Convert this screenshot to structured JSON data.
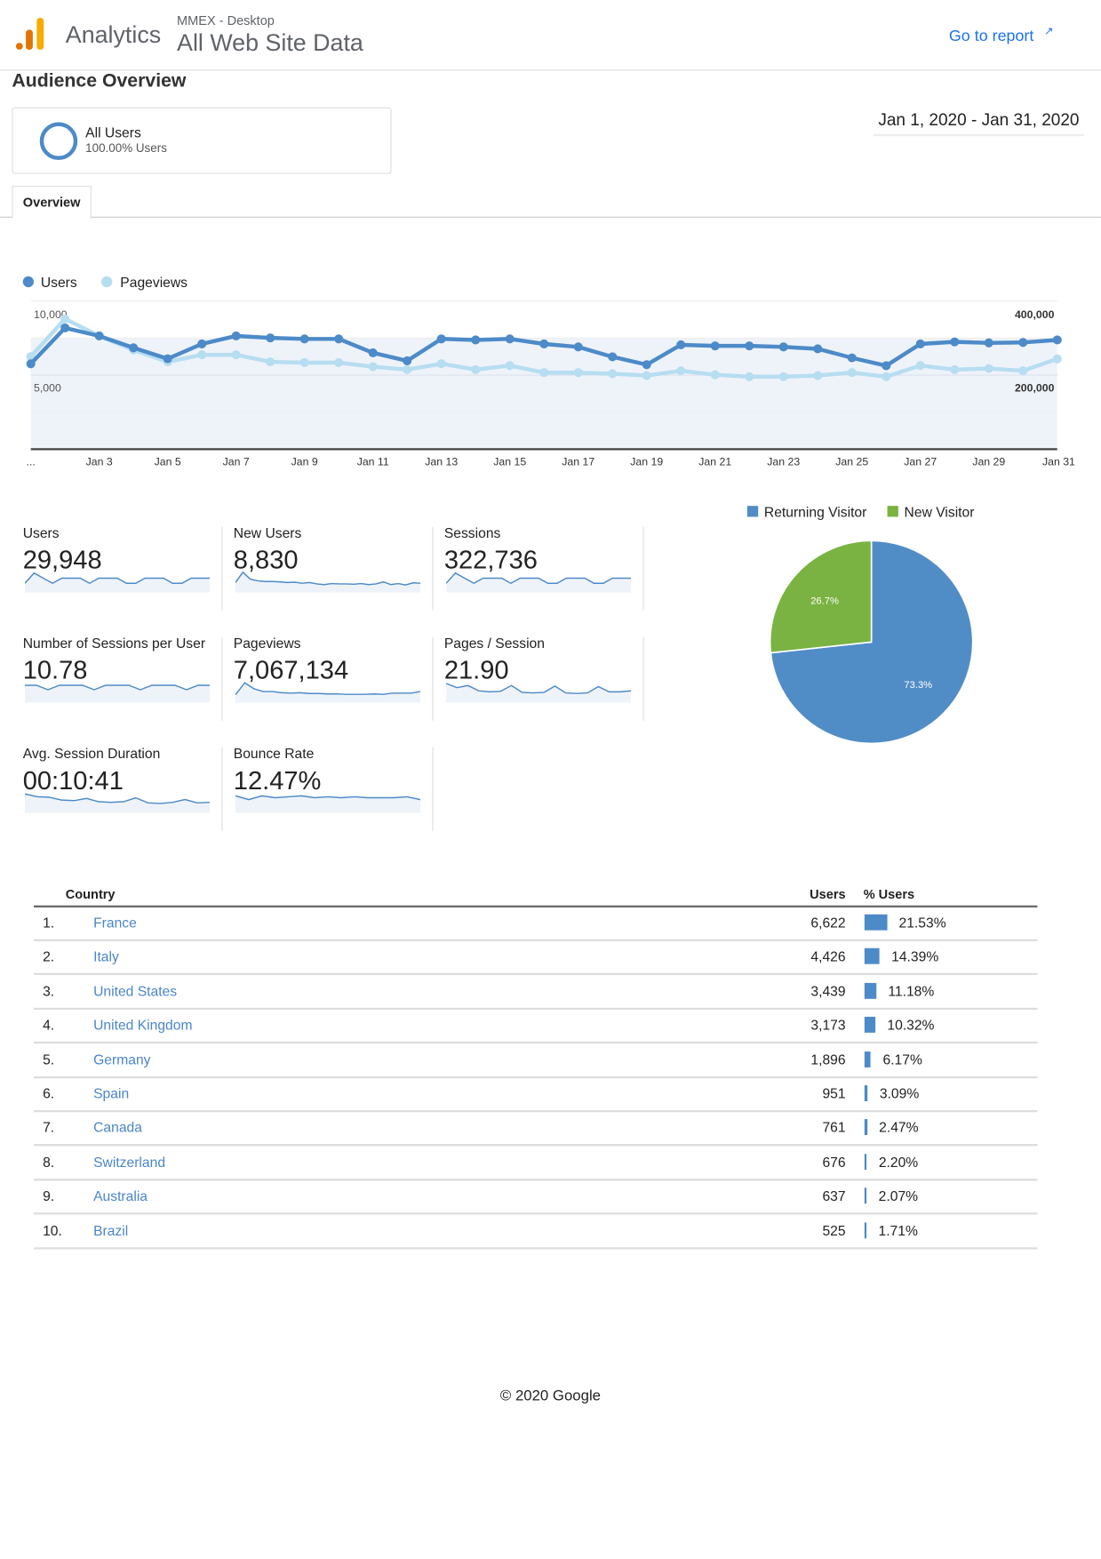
{
  "header": {
    "product": "Analytics",
    "account": "MMEX - Desktop",
    "view": "All Web Site Data",
    "go_to_report": "Go to report"
  },
  "page_title": "Audience Overview",
  "segment": {
    "name": "All Users",
    "detail": "100.00% Users"
  },
  "date_range": "Jan 1, 2020 - Jan 31, 2020",
  "tabs": [
    {
      "label": "Overview"
    }
  ],
  "colors": {
    "users": "#4d8ac8",
    "pageviews": "#b7ddf1",
    "returning": "#508dc6",
    "new": "#7ab342",
    "link": "#1a73e8"
  },
  "chart_data": [
    {
      "type": "line",
      "legend": [
        "Users",
        "Pageviews"
      ],
      "x": [
        "Jan 1",
        "Jan 2",
        "Jan 3",
        "Jan 4",
        "Jan 5",
        "Jan 6",
        "Jan 7",
        "Jan 8",
        "Jan 9",
        "Jan 10",
        "Jan 11",
        "Jan 12",
        "Jan 13",
        "Jan 14",
        "Jan 15",
        "Jan 16",
        "Jan 17",
        "Jan 18",
        "Jan 19",
        "Jan 20",
        "Jan 21",
        "Jan 22",
        "Jan 23",
        "Jan 24",
        "Jan 25",
        "Jan 26",
        "Jan 27",
        "Jan 28",
        "Jan 29",
        "Jan 30",
        "Jan 31"
      ],
      "xtick_labels": [
        "...",
        "Jan 3",
        "Jan 5",
        "Jan 7",
        "Jan 9",
        "Jan 11",
        "Jan 13",
        "Jan 15",
        "Jan 17",
        "Jan 19",
        "Jan 21",
        "Jan 23",
        "Jan 25",
        "Jan 27",
        "Jan 29",
        "Jan 31"
      ],
      "left_axis": {
        "ticks": [
          "10,000",
          "5,000"
        ],
        "range": [
          0,
          10000
        ]
      },
      "right_axis": {
        "ticks": [
          "400,000",
          "200,000"
        ],
        "range": [
          0,
          400000
        ]
      },
      "series": [
        {
          "name": "Users",
          "axis": "left",
          "values": [
            5770,
            8190,
            7650,
            6850,
            6110,
            7110,
            7650,
            7520,
            7450,
            7450,
            6510,
            5970,
            7450,
            7380,
            7450,
            7110,
            6910,
            6240,
            5710,
            7050,
            6980,
            6980,
            6910,
            6780,
            6170,
            5640,
            7110,
            7250,
            7180,
            7210,
            7380
          ]
        },
        {
          "name": "Pageviews",
          "axis": "right",
          "values": [
            250000,
            352000,
            306000,
            268000,
            236000,
            255000,
            255000,
            236000,
            234000,
            234000,
            223000,
            215000,
            231000,
            215000,
            226000,
            207000,
            207000,
            204000,
            199000,
            212000,
            201000,
            196000,
            196000,
            199000,
            207000,
            196000,
            226000,
            215000,
            218000,
            212000,
            244000
          ]
        }
      ]
    },
    {
      "type": "pie",
      "legend": [
        "Returning Visitor",
        "New Visitor"
      ],
      "values": [
        73.3,
        26.7
      ],
      "labels": [
        "73.3%",
        "26.7%"
      ]
    }
  ],
  "metrics": [
    {
      "label": "Users",
      "value": "29,948",
      "spark": [
        7,
        9,
        8,
        7,
        8,
        8,
        8,
        7,
        8,
        8,
        8,
        7,
        7,
        8,
        8,
        8,
        7,
        7,
        8,
        8,
        8
      ]
    },
    {
      "label": "New Users",
      "value": "8,830",
      "spark": [
        8,
        11,
        9,
        8.5,
        8.3,
        8.3,
        8.2,
        8,
        8.1,
        7.8,
        8,
        7.6,
        7.4,
        7.7,
        7.6,
        7.6,
        7.5,
        7.7,
        7.4,
        7.6,
        8.2,
        7.4,
        7.7,
        7.3,
        7.9,
        7.8
      ]
    },
    {
      "label": "Sessions",
      "value": "322,736",
      "spark": [
        7,
        9,
        8,
        7,
        8,
        8,
        8,
        7,
        8,
        8,
        8,
        7,
        7,
        8,
        8,
        8,
        7,
        7,
        8,
        8,
        8
      ]
    },
    {
      "label": "Number of Sessions per User",
      "value": "10.78",
      "spark": [
        8,
        8,
        7.5,
        8,
        8,
        8,
        7.5,
        8,
        8,
        8,
        7.5,
        8,
        8,
        8,
        7.5,
        8,
        8
      ]
    },
    {
      "label": "Pageviews",
      "value": "7,067,134",
      "spark": [
        8,
        11,
        9.5,
        8.8,
        8.8,
        8.5,
        8.4,
        8.5,
        8.3,
        8.3,
        8.2,
        8.2,
        8.1,
        8.1,
        8.1,
        8.2,
        8.1,
        8.4,
        8.4,
        8.4,
        8.8
      ]
    },
    {
      "label": "Pages / Session",
      "value": "21.90",
      "spark": [
        9,
        8.2,
        8.6,
        7.6,
        7.4,
        7.5,
        8.6,
        7.3,
        7.2,
        7.3,
        8.5,
        7.2,
        7.1,
        7.2,
        8.4,
        7.4,
        7.4,
        7.6
      ]
    },
    {
      "label": "Avg. Session Duration",
      "value": "00:10:41",
      "spark": [
        9,
        8.5,
        8.4,
        7.9,
        7.8,
        8.2,
        7.6,
        7.5,
        7.6,
        8.3,
        7.4,
        7.3,
        7.5,
        8,
        7.4,
        7.5
      ]
    },
    {
      "label": "Bounce Rate",
      "value": "12.47%",
      "spark": [
        8,
        7.6,
        8,
        7.8,
        7.9,
        8,
        7.8,
        7.9,
        7.8,
        7.9,
        7.8,
        7.8,
        7.8,
        7.9,
        7.6
      ]
    }
  ],
  "table": {
    "headers": [
      "Country",
      "Users",
      "% Users"
    ],
    "rows": [
      {
        "rank": "1.",
        "country": "France",
        "users": "6,622",
        "pct": "21.53%",
        "pct_value": 21.53
      },
      {
        "rank": "2.",
        "country": "Italy",
        "users": "4,426",
        "pct": "14.39%",
        "pct_value": 14.39
      },
      {
        "rank": "3.",
        "country": "United States",
        "users": "3,439",
        "pct": "11.18%",
        "pct_value": 11.18
      },
      {
        "rank": "4.",
        "country": "United Kingdom",
        "users": "3,173",
        "pct": "10.32%",
        "pct_value": 10.32
      },
      {
        "rank": "5.",
        "country": "Germany",
        "users": "1,896",
        "pct": "6.17%",
        "pct_value": 6.17
      },
      {
        "rank": "6.",
        "country": "Spain",
        "users": "951",
        "pct": "3.09%",
        "pct_value": 3.09
      },
      {
        "rank": "7.",
        "country": "Canada",
        "users": "761",
        "pct": "2.47%",
        "pct_value": 2.47
      },
      {
        "rank": "8.",
        "country": "Switzerland",
        "users": "676",
        "pct": "2.20%",
        "pct_value": 2.2
      },
      {
        "rank": "9.",
        "country": "Australia",
        "users": "637",
        "pct": "2.07%",
        "pct_value": 2.07
      },
      {
        "rank": "10.",
        "country": "Brazil",
        "users": "525",
        "pct": "1.71%",
        "pct_value": 1.71
      }
    ]
  },
  "footer": "© 2020 Google"
}
